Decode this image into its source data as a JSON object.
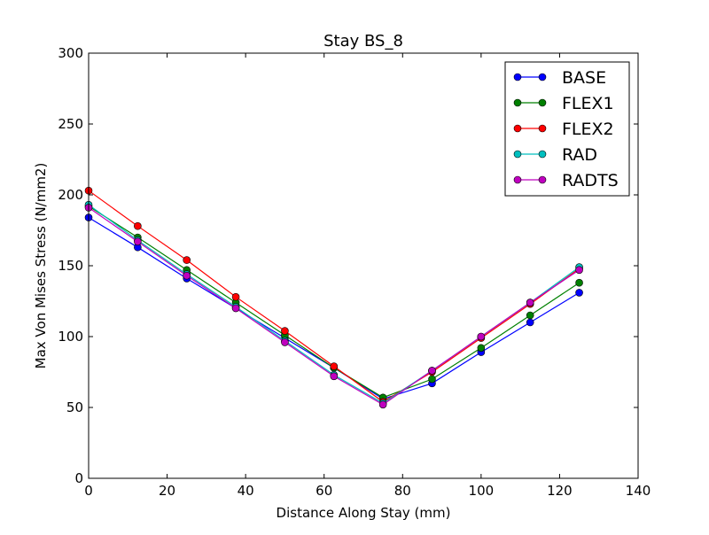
{
  "chart_data": {
    "type": "line",
    "title": "Stay BS_8",
    "xlabel": "Distance Along Stay (mm)",
    "ylabel": "Max Von Mises Stress (N/mm2)",
    "xlim": [
      0,
      140
    ],
    "ylim": [
      0,
      300
    ],
    "xticks": [
      0,
      20,
      40,
      60,
      80,
      100,
      120,
      140
    ],
    "yticks": [
      0,
      50,
      100,
      150,
      200,
      250,
      300
    ],
    "grid": false,
    "legend_position": "top-right",
    "x": [
      0,
      12.5,
      25,
      37.5,
      50,
      62.5,
      75,
      87.5,
      100,
      112.5,
      125
    ],
    "series": [
      {
        "name": "BASE",
        "color": "#0000ff",
        "values": [
          184,
          163,
          141,
          120,
          99,
          78,
          56,
          67,
          89,
          110,
          131
        ]
      },
      {
        "name": "FLEX1",
        "color": "#008000",
        "values": [
          192,
          170,
          147,
          124,
          101,
          78,
          57,
          70,
          92,
          115,
          138
        ]
      },
      {
        "name": "FLEX2",
        "color": "#ff0000",
        "values": [
          203,
          178,
          154,
          128,
          104,
          79,
          54,
          75,
          99,
          123,
          148
        ]
      },
      {
        "name": "RAD",
        "color": "#00bfbf",
        "values": [
          193,
          168,
          144,
          121,
          97,
          73,
          53,
          76,
          100,
          124,
          149
        ]
      },
      {
        "name": "RADTS",
        "color": "#bf00bf",
        "values": [
          191,
          167,
          143,
          120,
          96,
          72,
          52,
          76,
          100,
          124,
          147
        ]
      }
    ]
  }
}
